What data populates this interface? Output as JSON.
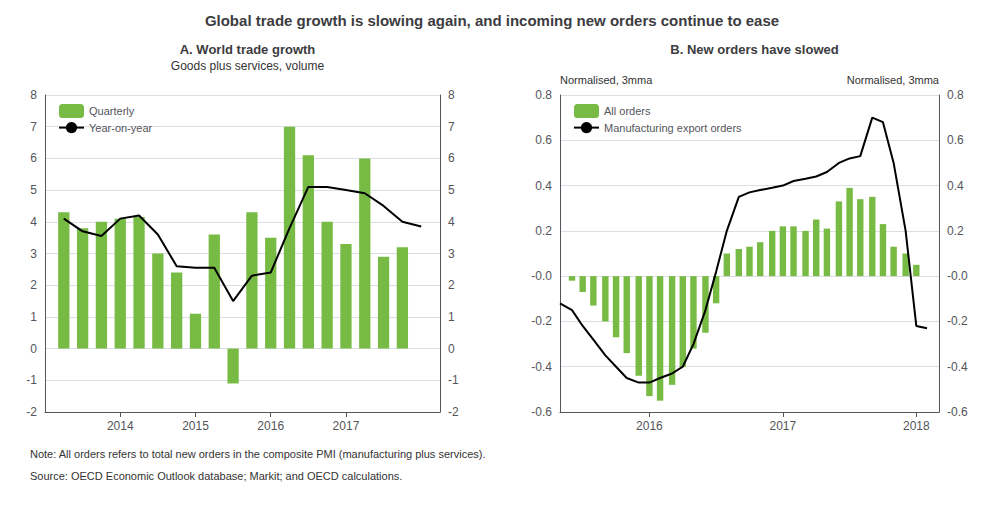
{
  "title": "Global trade growth is slowing again, and incoming new orders continue to ease",
  "annotations": [
    "Note: All orders refers to total new orders in the composite PMI (manufacturing plus services).",
    "Source: OECD Economic Outlook database; Markit; and OECD calculations."
  ],
  "chart_data": [
    {
      "type": "bar",
      "title": "A. World trade growth",
      "subtitle": "Goods plus services, volume",
      "series": [
        {
          "name": "Quarterly",
          "type": "bar",
          "color": "#77bb44",
          "x": [
            2013.25,
            2013.5,
            2013.75,
            2014.0,
            2014.25,
            2014.5,
            2014.75,
            2015.0,
            2015.25,
            2015.5,
            2015.75,
            2016.0,
            2016.25,
            2016.5,
            2016.75,
            2017.0,
            2017.25,
            2017.5,
            2017.75,
            2018.0
          ],
          "values": [
            4.3,
            3.8,
            4.0,
            4.1,
            4.15,
            3.0,
            2.4,
            1.1,
            3.6,
            -1.1,
            4.3,
            3.5,
            7.0,
            6.1,
            4.0,
            3.3,
            6.0,
            2.9,
            3.2,
            0.0
          ]
        },
        {
          "name": "Year-on-year",
          "type": "line",
          "color": "#000000",
          "x": [
            2013.25,
            2013.5,
            2013.75,
            2014.0,
            2014.25,
            2014.5,
            2014.75,
            2015.0,
            2015.25,
            2015.5,
            2015.75,
            2016.0,
            2016.25,
            2016.5,
            2016.75,
            2017.0,
            2017.25,
            2017.5,
            2017.75,
            2018.0
          ],
          "values": [
            4.1,
            3.7,
            3.55,
            4.1,
            4.2,
            3.6,
            2.6,
            2.55,
            2.55,
            1.5,
            2.3,
            2.4,
            3.8,
            5.1,
            5.1,
            5.0,
            4.9,
            4.5,
            4.0,
            3.85
          ]
        }
      ],
      "xlim": [
        2013.0,
        2018.25
      ],
      "xticks": [
        2014,
        2015,
        2016,
        2017
      ],
      "ylim": [
        -2,
        8
      ],
      "yticks": [
        -2,
        -1,
        0,
        1,
        2,
        3,
        4,
        5,
        6,
        7,
        8
      ],
      "y2lim": [
        -2,
        8
      ],
      "y2ticks": [
        -2,
        -1,
        0,
        1,
        2,
        3,
        4,
        5,
        6,
        7,
        8
      ],
      "grid": true,
      "legend": "upper left"
    },
    {
      "type": "bar",
      "title": "B. New orders have slowed",
      "ylabel": "Normalised, 3mma",
      "y2label": "Normalised, 3mma",
      "series": [
        {
          "name": "All orders",
          "type": "bar",
          "color": "#77bb44",
          "x": [
            2015.42,
            2015.5,
            2015.58,
            2015.67,
            2015.75,
            2015.83,
            2015.92,
            2016.0,
            2016.08,
            2016.17,
            2016.25,
            2016.33,
            2016.42,
            2016.5,
            2016.58,
            2016.67,
            2016.75,
            2016.83,
            2016.92,
            2017.0,
            2017.08,
            2017.17,
            2017.25,
            2017.33,
            2017.42,
            2017.5,
            2017.58,
            2017.67,
            2017.75,
            2017.83,
            2017.92,
            2018.0
          ],
          "values": [
            -0.02,
            -0.07,
            -0.13,
            -0.2,
            -0.27,
            -0.34,
            -0.44,
            -0.53,
            -0.55,
            -0.48,
            -0.4,
            -0.32,
            -0.25,
            -0.12,
            0.1,
            0.12,
            0.13,
            0.15,
            0.2,
            0.22,
            0.22,
            0.2,
            0.25,
            0.21,
            0.33,
            0.39,
            0.34,
            0.35,
            0.23,
            0.13,
            0.1,
            0.05
          ]
        },
        {
          "name": "Manufacturing export orders",
          "type": "line",
          "color": "#000000",
          "x": [
            2015.33,
            2015.42,
            2015.5,
            2015.58,
            2015.67,
            2015.75,
            2015.83,
            2015.92,
            2016.0,
            2016.08,
            2016.17,
            2016.25,
            2016.33,
            2016.42,
            2016.5,
            2016.58,
            2016.67,
            2016.75,
            2016.83,
            2016.92,
            2017.0,
            2017.08,
            2017.17,
            2017.25,
            2017.33,
            2017.42,
            2017.5,
            2017.58,
            2017.67,
            2017.75,
            2017.83,
            2017.92,
            2018.0,
            2018.08
          ],
          "values": [
            -0.12,
            -0.15,
            -0.22,
            -0.28,
            -0.35,
            -0.4,
            -0.45,
            -0.47,
            -0.47,
            -0.45,
            -0.43,
            -0.4,
            -0.3,
            -0.15,
            0.02,
            0.2,
            0.35,
            0.37,
            0.38,
            0.39,
            0.4,
            0.42,
            0.43,
            0.44,
            0.46,
            0.5,
            0.52,
            0.53,
            0.7,
            0.68,
            0.5,
            0.2,
            -0.22,
            -0.23
          ]
        }
      ],
      "xlim": [
        2015.33,
        2018.17
      ],
      "xticks": [
        2016,
        2017,
        2018
      ],
      "ylim": [
        -0.6,
        0.8
      ],
      "yticks": [
        -0.6,
        -0.4,
        -0.2,
        {
          "value": 0.0,
          "label": "-0.0"
        },
        0.2,
        0.4,
        0.6,
        0.8
      ],
      "y2lim": [
        -0.6,
        0.8
      ],
      "y2ticks": [
        -0.6,
        -0.4,
        -0.2,
        {
          "value": 0.0,
          "label": "-0.0"
        },
        0.2,
        0.4,
        0.6,
        0.8
      ],
      "grid": true,
      "legend": "upper left"
    }
  ]
}
